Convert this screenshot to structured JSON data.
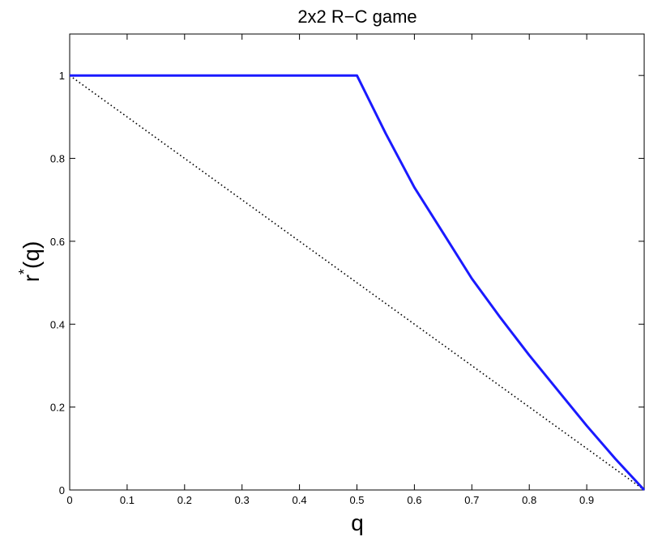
{
  "chart_data": {
    "type": "line",
    "title": "2x2 R−C game",
    "xlabel": "q",
    "ylabel_main": "r",
    "ylabel_sup": "*",
    "ylabel_arg": "(q)",
    "xlim": [
      0,
      1
    ],
    "ylim": [
      0,
      1.1
    ],
    "xticks": [
      0,
      0.1,
      0.2,
      0.3,
      0.4,
      0.5,
      0.6,
      0.7,
      0.8,
      0.9
    ],
    "xtick_labels": [
      "0",
      "0.1",
      "0.2",
      "0.3",
      "0.4",
      "0.5",
      "0.6",
      "0.7",
      "0.8",
      "0.9"
    ],
    "yticks": [
      0,
      0.2,
      0.4,
      0.6,
      0.8,
      1
    ],
    "ytick_labels": [
      "0",
      "0.2",
      "0.4",
      "0.6",
      "0.8",
      "1"
    ],
    "grid": false,
    "series": [
      {
        "style": "solid",
        "color": "#1a1aff",
        "x": [
          0,
          0.5,
          0.55,
          0.6,
          0.65,
          0.7,
          0.75,
          0.8,
          0.85,
          0.9,
          0.95,
          1.0
        ],
        "y": [
          1,
          1,
          0.86,
          0.73,
          0.62,
          0.51,
          0.415,
          0.325,
          0.24,
          0.155,
          0.075,
          0
        ]
      },
      {
        "style": "dotted",
        "color": "#000000",
        "x": [
          0,
          1
        ],
        "y": [
          1,
          0
        ]
      }
    ]
  }
}
